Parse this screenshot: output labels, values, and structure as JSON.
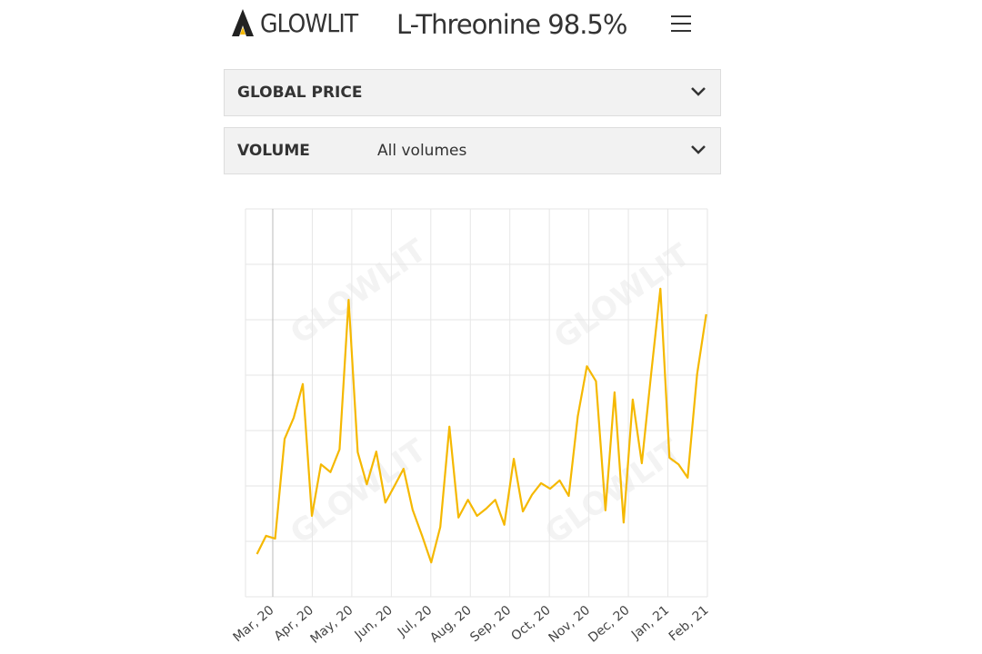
{
  "header": {
    "logo": "GLOWLIT",
    "title": "L-Threonine 98.5%"
  },
  "filters": {
    "price_label": "GLOBAL PRICE",
    "volume_label": "VOLUME",
    "volume_value": "All volumes"
  },
  "chart_data": {
    "type": "line",
    "x": [
      -0.4,
      -0.17,
      0.06,
      0.3,
      0.53,
      0.76,
      0.99,
      1.22,
      1.46,
      1.69,
      1.92,
      2.15,
      2.38,
      2.62,
      2.85,
      3.08,
      3.31,
      3.54,
      3.78,
      4.01,
      4.24,
      4.47,
      4.7,
      4.94,
      5.17,
      5.4,
      5.63,
      5.86,
      6.1,
      6.33,
      6.56,
      6.79,
      7.02,
      7.26,
      7.49,
      7.72,
      7.95,
      8.18,
      8.42,
      8.65,
      8.88,
      9.11,
      9.34,
      9.58,
      9.81,
      10.04,
      10.27,
      10.5,
      10.74,
      10.97
    ],
    "series": [
      {
        "color": "#f5b800",
        "values": [
          0.77,
          1.1,
          1.05,
          2.85,
          3.23,
          3.84,
          1.46,
          2.39,
          2.25,
          2.66,
          5.36,
          2.61,
          2.03,
          2.62,
          1.7,
          2.0,
          2.31,
          1.57,
          1.1,
          0.62,
          1.26,
          3.07,
          1.43,
          1.75,
          1.46,
          1.59,
          1.75,
          1.3,
          2.49,
          1.54,
          1.84,
          2.05,
          1.95,
          2.1,
          1.82,
          3.26,
          4.16,
          3.89,
          1.56,
          3.69,
          1.34,
          3.56,
          2.41,
          4.05,
          5.56,
          2.51,
          2.39,
          2.15,
          4.02,
          5.1
        ]
      }
    ],
    "xlim": [
      -0.69,
      11
    ],
    "ylim": [
      0,
      7
    ],
    "xticks": [
      {
        "value": 0,
        "label": "Mar, 20"
      },
      {
        "value": 1,
        "label": "Apr, 20"
      },
      {
        "value": 2,
        "label": "May, 20"
      },
      {
        "value": 3,
        "label": "Jun, 20"
      },
      {
        "value": 4,
        "label": "Jul, 20"
      },
      {
        "value": 5,
        "label": "Aug, 20"
      },
      {
        "value": 6,
        "label": "Sep, 20"
      },
      {
        "value": 7,
        "label": "Oct, 20"
      },
      {
        "value": 8,
        "label": "Nov, 20"
      },
      {
        "value": 9,
        "label": "Dec, 20"
      },
      {
        "value": 10,
        "label": "Jan, 21"
      },
      {
        "value": 11,
        "label": "Feb, 21"
      }
    ],
    "grid": true
  }
}
